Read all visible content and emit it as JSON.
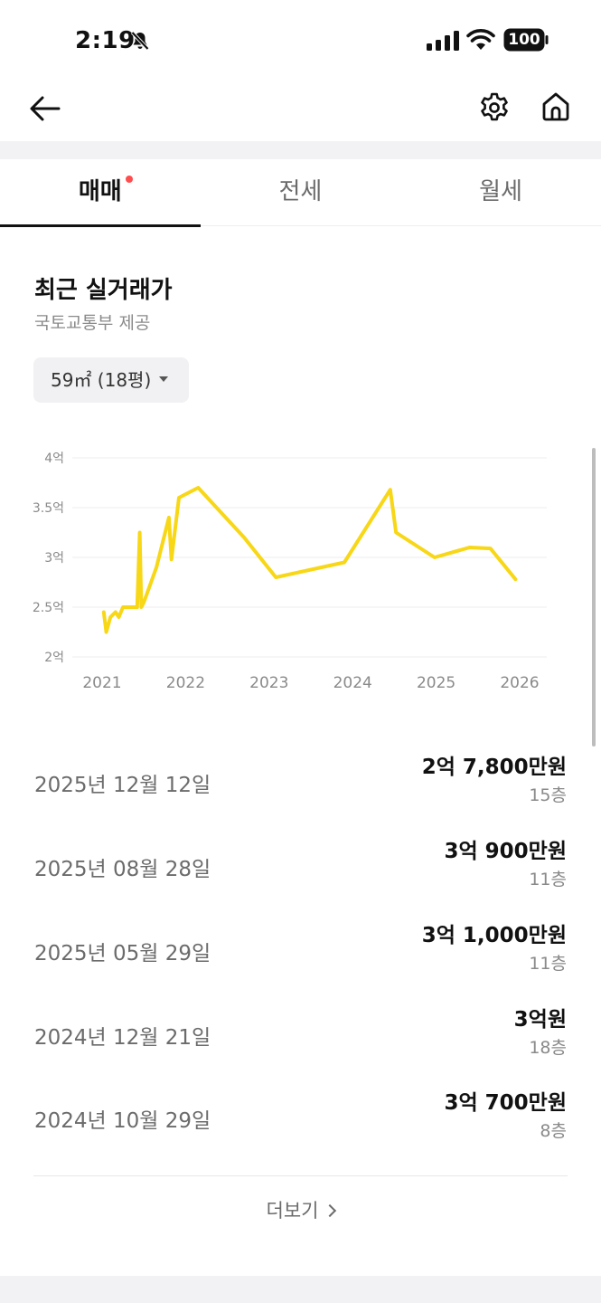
{
  "status_bar": {
    "time": "2:19",
    "battery": "100"
  },
  "tabs": [
    {
      "label": "매매",
      "active": true,
      "has_dot": true
    },
    {
      "label": "전세",
      "active": false
    },
    {
      "label": "월세",
      "active": false
    }
  ],
  "section": {
    "title": "최근 실거래가",
    "subtitle": "국토교통부 제공"
  },
  "size_selector": {
    "value": "59㎡ (18평)"
  },
  "chart_data": {
    "type": "line",
    "color": "#f7d716",
    "xlim": [
      2021,
      2026
    ],
    "ylim": [
      2,
      4
    ],
    "x_ticks": [
      "2021",
      "2022",
      "2023",
      "2024",
      "2025",
      "2026"
    ],
    "y_ticks": [
      {
        "value": 4,
        "label": "4억"
      },
      {
        "value": 3.5,
        "label": "3.5억"
      },
      {
        "value": 3,
        "label": "3억"
      },
      {
        "value": 2.5,
        "label": "2.5억"
      },
      {
        "value": 2,
        "label": "2억"
      }
    ],
    "grid": true,
    "points": [
      [
        2021.02,
        2.45
      ],
      [
        2021.05,
        2.25
      ],
      [
        2021.1,
        2.4
      ],
      [
        2021.16,
        2.45
      ],
      [
        2021.2,
        2.4
      ],
      [
        2021.25,
        2.5
      ],
      [
        2021.42,
        2.5
      ],
      [
        2021.45,
        3.25
      ],
      [
        2021.47,
        2.5
      ],
      [
        2021.5,
        2.55
      ],
      [
        2021.65,
        2.9
      ],
      [
        2021.8,
        3.4
      ],
      [
        2021.83,
        2.98
      ],
      [
        2021.92,
        3.6
      ],
      [
        2022.15,
        3.7
      ],
      [
        2022.7,
        3.2
      ],
      [
        2023.08,
        2.8
      ],
      [
        2023.9,
        2.95
      ],
      [
        2024.45,
        3.68
      ],
      [
        2024.52,
        3.25
      ],
      [
        2024.98,
        3.0
      ],
      [
        2025.4,
        3.1
      ],
      [
        2025.65,
        3.09
      ],
      [
        2025.95,
        2.78
      ]
    ]
  },
  "transactions": [
    {
      "date": "2025년 12월 12일",
      "price": "2억 7,800만원",
      "floor": "15층"
    },
    {
      "date": "2025년 08월 28일",
      "price": "3억 900만원",
      "floor": "11층"
    },
    {
      "date": "2025년 05월 29일",
      "price": "3억 1,000만원",
      "floor": "11층"
    },
    {
      "date": "2024년 12월 21일",
      "price": "3억원",
      "floor": "18층"
    },
    {
      "date": "2024년 10월 29일",
      "price": "3억 700만원",
      "floor": "8층"
    }
  ],
  "more_label": "더보기"
}
